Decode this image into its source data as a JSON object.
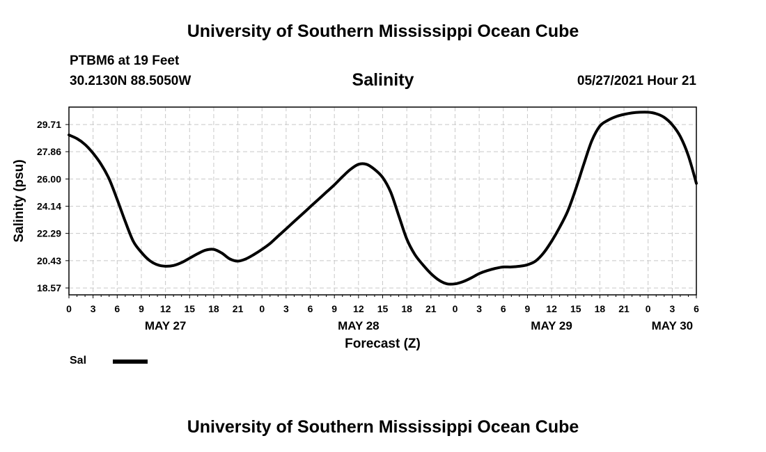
{
  "header": {
    "title": "University of Southern Mississippi Ocean Cube",
    "station": "PTBM6 at 19 Feet",
    "coords": "30.2130N  88.5050W",
    "variable": "Salinity",
    "datetime": "05/27/2021 Hour 21"
  },
  "footer": {
    "title": "University of Southern Mississippi Ocean Cube"
  },
  "legend": {
    "label": "Sal",
    "color": "#000000"
  },
  "chart_data": {
    "type": "line",
    "title": "Salinity",
    "xlabel": "Forecast (Z)",
    "ylabel": "Salinity (psu)",
    "xlim": [
      0,
      78
    ],
    "ylim": [
      18.1,
      30.9
    ],
    "grid": true,
    "x_ticks": [
      0,
      3,
      6,
      9,
      12,
      15,
      18,
      21,
      24,
      27,
      30,
      33,
      36,
      39,
      42,
      45,
      48,
      51,
      54,
      57,
      60,
      63,
      66,
      69,
      72,
      75,
      78
    ],
    "x_tick_labels": [
      "0",
      "3",
      "6",
      "9",
      "12",
      "15",
      "18",
      "21",
      "0",
      "3",
      "6",
      "9",
      "12",
      "15",
      "18",
      "21",
      "0",
      "3",
      "6",
      "9",
      "12",
      "15",
      "18",
      "21",
      "0",
      "3",
      "6"
    ],
    "date_labels": [
      {
        "x": 12,
        "label": "MAY 27"
      },
      {
        "x": 36,
        "label": "MAY 28"
      },
      {
        "x": 60,
        "label": "MAY 29"
      },
      {
        "x": 75,
        "label": "MAY 30"
      }
    ],
    "y_ticks": [
      18.57,
      20.43,
      22.29,
      24.14,
      26.0,
      27.86,
      29.71
    ],
    "y_tick_labels": [
      "18.57",
      "20.43",
      "22.29",
      "24.14",
      "26.00",
      "27.86",
      "29.71"
    ],
    "series": [
      {
        "name": "Sal",
        "color": "#000000",
        "x": [
          0,
          1,
          2,
          3,
          4,
          5,
          6,
          7,
          8,
          9,
          10,
          11,
          12,
          13,
          14,
          15,
          16,
          17,
          18,
          19,
          20,
          21,
          22,
          23,
          24,
          25,
          26,
          27,
          28,
          29,
          30,
          31,
          32,
          33,
          34,
          35,
          36,
          37,
          38,
          39,
          40,
          41,
          42,
          43,
          44,
          45,
          46,
          47,
          48,
          49,
          50,
          51,
          52,
          53,
          54,
          55,
          56,
          57,
          58,
          59,
          60,
          61,
          62,
          63,
          64,
          65,
          66,
          67,
          68,
          69,
          70,
          71,
          72,
          73,
          74,
          75,
          76,
          77,
          78
        ],
        "values": [
          29.0,
          28.75,
          28.35,
          27.75,
          27.0,
          26.0,
          24.6,
          23.1,
          21.75,
          21.0,
          20.45,
          20.15,
          20.05,
          20.1,
          20.3,
          20.6,
          20.9,
          21.15,
          21.2,
          20.95,
          20.55,
          20.4,
          20.55,
          20.85,
          21.2,
          21.6,
          22.1,
          22.6,
          23.1,
          23.6,
          24.1,
          24.6,
          25.1,
          25.6,
          26.15,
          26.65,
          27.0,
          27.0,
          26.65,
          26.1,
          25.1,
          23.5,
          21.9,
          20.85,
          20.15,
          19.55,
          19.1,
          18.85,
          18.85,
          19.0,
          19.25,
          19.55,
          19.75,
          19.9,
          20.0,
          20.0,
          20.05,
          20.15,
          20.4,
          20.95,
          21.75,
          22.7,
          23.8,
          25.3,
          27.0,
          28.6,
          29.6,
          30.0,
          30.25,
          30.4,
          30.5,
          30.55,
          30.55,
          30.45,
          30.2,
          29.7,
          28.9,
          27.6,
          25.7
        ]
      }
    ]
  }
}
